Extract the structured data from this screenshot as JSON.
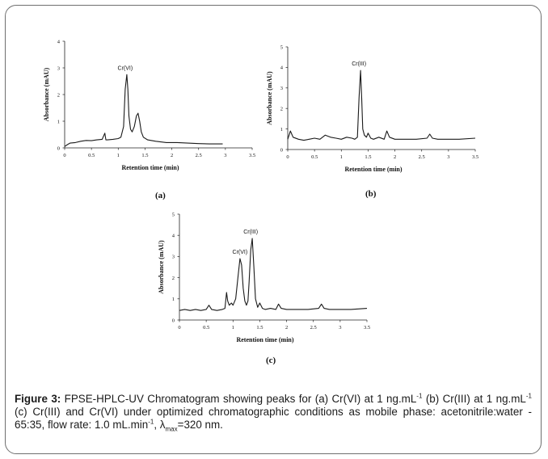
{
  "chart_data": [
    {
      "type": "line",
      "panel_label": "(a)",
      "xlabel": "Retention time (min)",
      "ylabel": "Absorbance (mAU)",
      "xlim": [
        0,
        3.5
      ],
      "ylim": [
        0,
        4
      ],
      "xticks": [
        "0",
        "0.5",
        "1",
        "1.5",
        "2",
        "2.5",
        "3",
        "3.5"
      ],
      "yticks": [
        "0",
        "1",
        "2",
        "3",
        "4"
      ],
      "series": [
        {
          "x": [
            0,
            0.05,
            0.1,
            0.2,
            0.3,
            0.4,
            0.5,
            0.6,
            0.7,
            0.75,
            0.77,
            0.78,
            0.8,
            0.9,
            1.0,
            1.05,
            1.1,
            1.13,
            1.16,
            1.18,
            1.2,
            1.23,
            1.26,
            1.3,
            1.34,
            1.37,
            1.4,
            1.43,
            1.47,
            1.55,
            1.7,
            1.9,
            2.1,
            2.3,
            2.5,
            2.7,
            2.95
          ],
          "y": [
            0.05,
            0.12,
            0.18,
            0.2,
            0.25,
            0.28,
            0.27,
            0.3,
            0.32,
            0.55,
            0.3,
            0.3,
            0.3,
            0.32,
            0.35,
            0.4,
            0.8,
            2.2,
            2.75,
            2.2,
            1.2,
            0.7,
            0.6,
            0.8,
            1.2,
            1.3,
            1.0,
            0.6,
            0.4,
            0.3,
            0.25,
            0.2,
            0.2,
            0.18,
            0.16,
            0.15,
            0.15
          ]
        }
      ],
      "annotations": [
        {
          "text": "Cr(VI)",
          "x": 1.16,
          "y": 2.75
        }
      ]
    },
    {
      "type": "line",
      "panel_label": "(b)",
      "xlabel": "Retention time (min)",
      "ylabel": "Absorbance (mAU)",
      "xlim": [
        0,
        3.5
      ],
      "ylim": [
        0,
        5
      ],
      "xticks": [
        "0",
        "0.5",
        "1",
        "1.5",
        "2",
        "2.5",
        "3",
        "3.5"
      ],
      "yticks": [
        "0",
        "1",
        "2",
        "3",
        "4",
        "5"
      ],
      "series": [
        {
          "x": [
            0,
            0.05,
            0.1,
            0.2,
            0.3,
            0.4,
            0.5,
            0.6,
            0.7,
            0.8,
            0.9,
            1.0,
            1.1,
            1.2,
            1.25,
            1.3,
            1.33,
            1.36,
            1.38,
            1.4,
            1.43,
            1.47,
            1.5,
            1.55,
            1.6,
            1.7,
            1.8,
            1.85,
            1.9,
            2.0,
            2.2,
            2.4,
            2.6,
            2.65,
            2.7,
            2.8,
            3.0,
            3.2,
            3.5
          ],
          "y": [
            0.5,
            0.9,
            0.6,
            0.5,
            0.45,
            0.5,
            0.55,
            0.5,
            0.7,
            0.6,
            0.55,
            0.5,
            0.6,
            0.55,
            0.5,
            0.6,
            2.5,
            3.85,
            2.5,
            1.0,
            0.7,
            0.6,
            0.8,
            0.55,
            0.5,
            0.6,
            0.5,
            0.9,
            0.6,
            0.5,
            0.5,
            0.5,
            0.55,
            0.75,
            0.55,
            0.5,
            0.5,
            0.5,
            0.55
          ]
        }
      ],
      "annotations": [
        {
          "text": "Cr(III)",
          "x": 1.36,
          "y": 3.85
        }
      ]
    },
    {
      "type": "line",
      "panel_label": "(c)",
      "xlabel": "Retention time (min)",
      "ylabel": "Absorbance (mAU)",
      "xlim": [
        0,
        3.5
      ],
      "ylim": [
        0,
        5
      ],
      "xticks": [
        "0",
        "0.5",
        "1",
        "1.5",
        "2",
        "2.5",
        "3",
        "3.5"
      ],
      "yticks": [
        "0",
        "1",
        "2",
        "3",
        "4",
        "5"
      ],
      "series": [
        {
          "x": [
            0,
            0.1,
            0.2,
            0.3,
            0.4,
            0.5,
            0.55,
            0.6,
            0.7,
            0.8,
            0.85,
            0.88,
            0.9,
            0.93,
            0.97,
            1.0,
            1.05,
            1.1,
            1.13,
            1.16,
            1.19,
            1.22,
            1.25,
            1.28,
            1.3,
            1.33,
            1.36,
            1.39,
            1.42,
            1.46,
            1.5,
            1.55,
            1.6,
            1.7,
            1.8,
            1.85,
            1.9,
            2.0,
            2.2,
            2.4,
            2.6,
            2.65,
            2.7,
            2.8,
            3.0,
            3.2,
            3.5
          ],
          "y": [
            0.45,
            0.5,
            0.45,
            0.5,
            0.45,
            0.5,
            0.7,
            0.5,
            0.45,
            0.5,
            0.55,
            1.3,
            0.9,
            0.7,
            0.8,
            0.7,
            1.0,
            2.2,
            2.9,
            2.6,
            1.5,
            0.9,
            0.7,
            0.9,
            1.8,
            3.3,
            3.85,
            2.5,
            1.0,
            0.6,
            0.8,
            0.55,
            0.5,
            0.55,
            0.5,
            0.75,
            0.55,
            0.5,
            0.5,
            0.5,
            0.55,
            0.75,
            0.55,
            0.5,
            0.5,
            0.5,
            0.55
          ]
        }
      ],
      "annotations": [
        {
          "text": "Cr(VI)",
          "x": 1.16,
          "y": 2.9
        },
        {
          "text": "Cr(III)",
          "x": 1.36,
          "y": 3.85
        }
      ]
    }
  ],
  "caption": {
    "lead": "Figure 3:",
    "t1": " FPSE-HPLC-UV Chromatogram showing peaks for (a) Cr(VI) at 1 ng.mL",
    "sup1": "-1",
    "t2": " (b) Cr(III) at 1 ng.mL",
    "sup2": "-1",
    "t3": " (c) Cr(III) and Cr(VI) under optimized chromatographic conditions as mobile phase: acetonitrile:water - 65:35, flow rate: 1.0 mL.min",
    "sup3": "-1",
    "t4": ", λ",
    "sub4": "max",
    "t5": "=320 nm."
  }
}
